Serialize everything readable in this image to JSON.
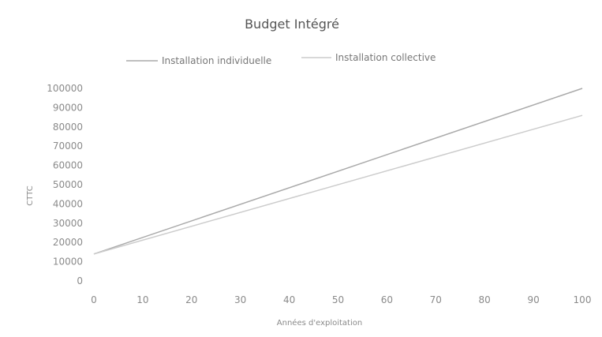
{
  "chart_data": {
    "type": "line",
    "title": "Budget Intégré",
    "xlabel": "Années d'exploitation",
    "ylabel": "CTTC",
    "xlim": [
      0,
      100
    ],
    "ylim": [
      0,
      100000
    ],
    "x_ticks": [
      "0",
      "10",
      "20",
      "30",
      "40",
      "50",
      "60",
      "70",
      "80",
      "90",
      "100"
    ],
    "y_ticks": [
      "0",
      "10000",
      "20000",
      "30000",
      "40000",
      "50000",
      "60000",
      "70000",
      "80000",
      "90000",
      "100000"
    ],
    "legend_position": "top",
    "grid": false,
    "series": [
      {
        "name": "Installation individuelle",
        "color": "#aaaaaa",
        "x": [
          0,
          100
        ],
        "y": [
          14000,
          100000
        ]
      },
      {
        "name": "Installation collective",
        "color": "#cccccc",
        "x": [
          0,
          100
        ],
        "y": [
          14000,
          86000
        ]
      }
    ]
  }
}
